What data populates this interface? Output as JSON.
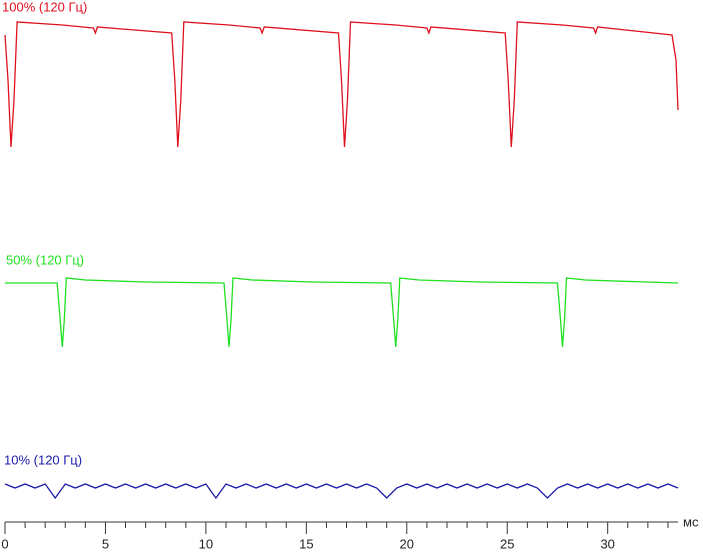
{
  "chart_data": {
    "type": "line",
    "x_unit_label": "мс",
    "xlim": [
      0,
      33.5
    ],
    "ylim": [
      0,
      520
    ],
    "xticks": [
      0,
      5,
      10,
      15,
      20,
      25,
      30
    ],
    "xminor_ticks": [
      1,
      2,
      3,
      4,
      6,
      7,
      8,
      9,
      11,
      12,
      13,
      14,
      16,
      17,
      18,
      19,
      21,
      22,
      23,
      24,
      26,
      27,
      28,
      29,
      31,
      32,
      33
    ],
    "series": [
      {
        "name": "100% (120 Гц)",
        "color": "#e0101e",
        "x": [
          0,
          0.15,
          0.3,
          0.45,
          0.6,
          2.85,
          4.4,
          4.5,
          4.6,
          8.3,
          8.45,
          8.6,
          8.75,
          8.9,
          11.15,
          12.7,
          12.8,
          12.9,
          16.6,
          16.75,
          16.9,
          17.05,
          17.2,
          19.45,
          21.0,
          21.1,
          21.2,
          24.9,
          25.05,
          25.2,
          25.35,
          25.5,
          27.75,
          29.3,
          29.4,
          29.5,
          33.2,
          33.4,
          33.5
        ],
        "values": [
          485,
          440,
          373,
          420,
          498,
          495,
          492,
          487,
          493,
          487,
          440,
          373,
          420,
          498,
          495,
          492,
          487,
          493,
          487,
          440,
          373,
          420,
          498,
          495,
          492,
          487,
          493,
          487,
          440,
          373,
          420,
          498,
          495,
          492,
          487,
          493,
          485,
          460,
          410
        ]
      },
      {
        "name": "50% (120 Гц)",
        "color": "#1fe01f",
        "x": [
          0,
          2.6,
          2.75,
          2.85,
          2.95,
          3.05,
          4.0,
          7.0,
          10.9,
          11.05,
          11.15,
          11.25,
          11.35,
          12.3,
          15.3,
          19.2,
          19.35,
          19.45,
          19.55,
          19.65,
          20.6,
          23.6,
          27.5,
          27.65,
          27.75,
          27.85,
          27.95,
          28.9,
          31.9,
          33.5
        ],
        "values": [
          237,
          237,
          200,
          173,
          200,
          242,
          240,
          238,
          237,
          200,
          173,
          200,
          242,
          240,
          238,
          237,
          200,
          173,
          200,
          242,
          240,
          238,
          237,
          200,
          173,
          200,
          242,
          240,
          238,
          237
        ]
      },
      {
        "name": "10% (120 Гц)",
        "color": "#1a1aa8",
        "x": [
          0,
          0.5,
          1,
          1.5,
          2,
          2.5,
          3,
          3.5,
          4,
          4.5,
          5,
          5.5,
          6,
          6.5,
          7,
          7.5,
          8,
          8.5,
          9,
          9.5,
          10,
          10.5,
          11,
          11.5,
          12,
          12.5,
          13,
          13.5,
          14,
          14.5,
          15,
          15.5,
          16,
          16.5,
          17,
          17.5,
          18,
          18.5,
          19,
          19.5,
          20,
          20.5,
          21,
          21.5,
          22,
          22.5,
          23,
          23.5,
          24,
          24.5,
          25,
          25.5,
          26,
          26.5,
          27,
          27.5,
          28,
          28.5,
          29,
          29.5,
          30,
          30.5,
          31,
          31.5,
          32,
          32.5,
          33,
          33.5
        ],
        "values": [
          36,
          32,
          36,
          32,
          36,
          22,
          36,
          32,
          36,
          32,
          36,
          32,
          36,
          32,
          36,
          32,
          36,
          32,
          36,
          32,
          36,
          22,
          36,
          32,
          36,
          32,
          36,
          32,
          36,
          32,
          36,
          32,
          36,
          32,
          36,
          32,
          36,
          32,
          22,
          32,
          36,
          32,
          36,
          32,
          36,
          32,
          36,
          32,
          36,
          32,
          36,
          32,
          36,
          32,
          22,
          32,
          36,
          32,
          36,
          32,
          36,
          32,
          36,
          32,
          36,
          32,
          36,
          32
        ]
      }
    ]
  }
}
